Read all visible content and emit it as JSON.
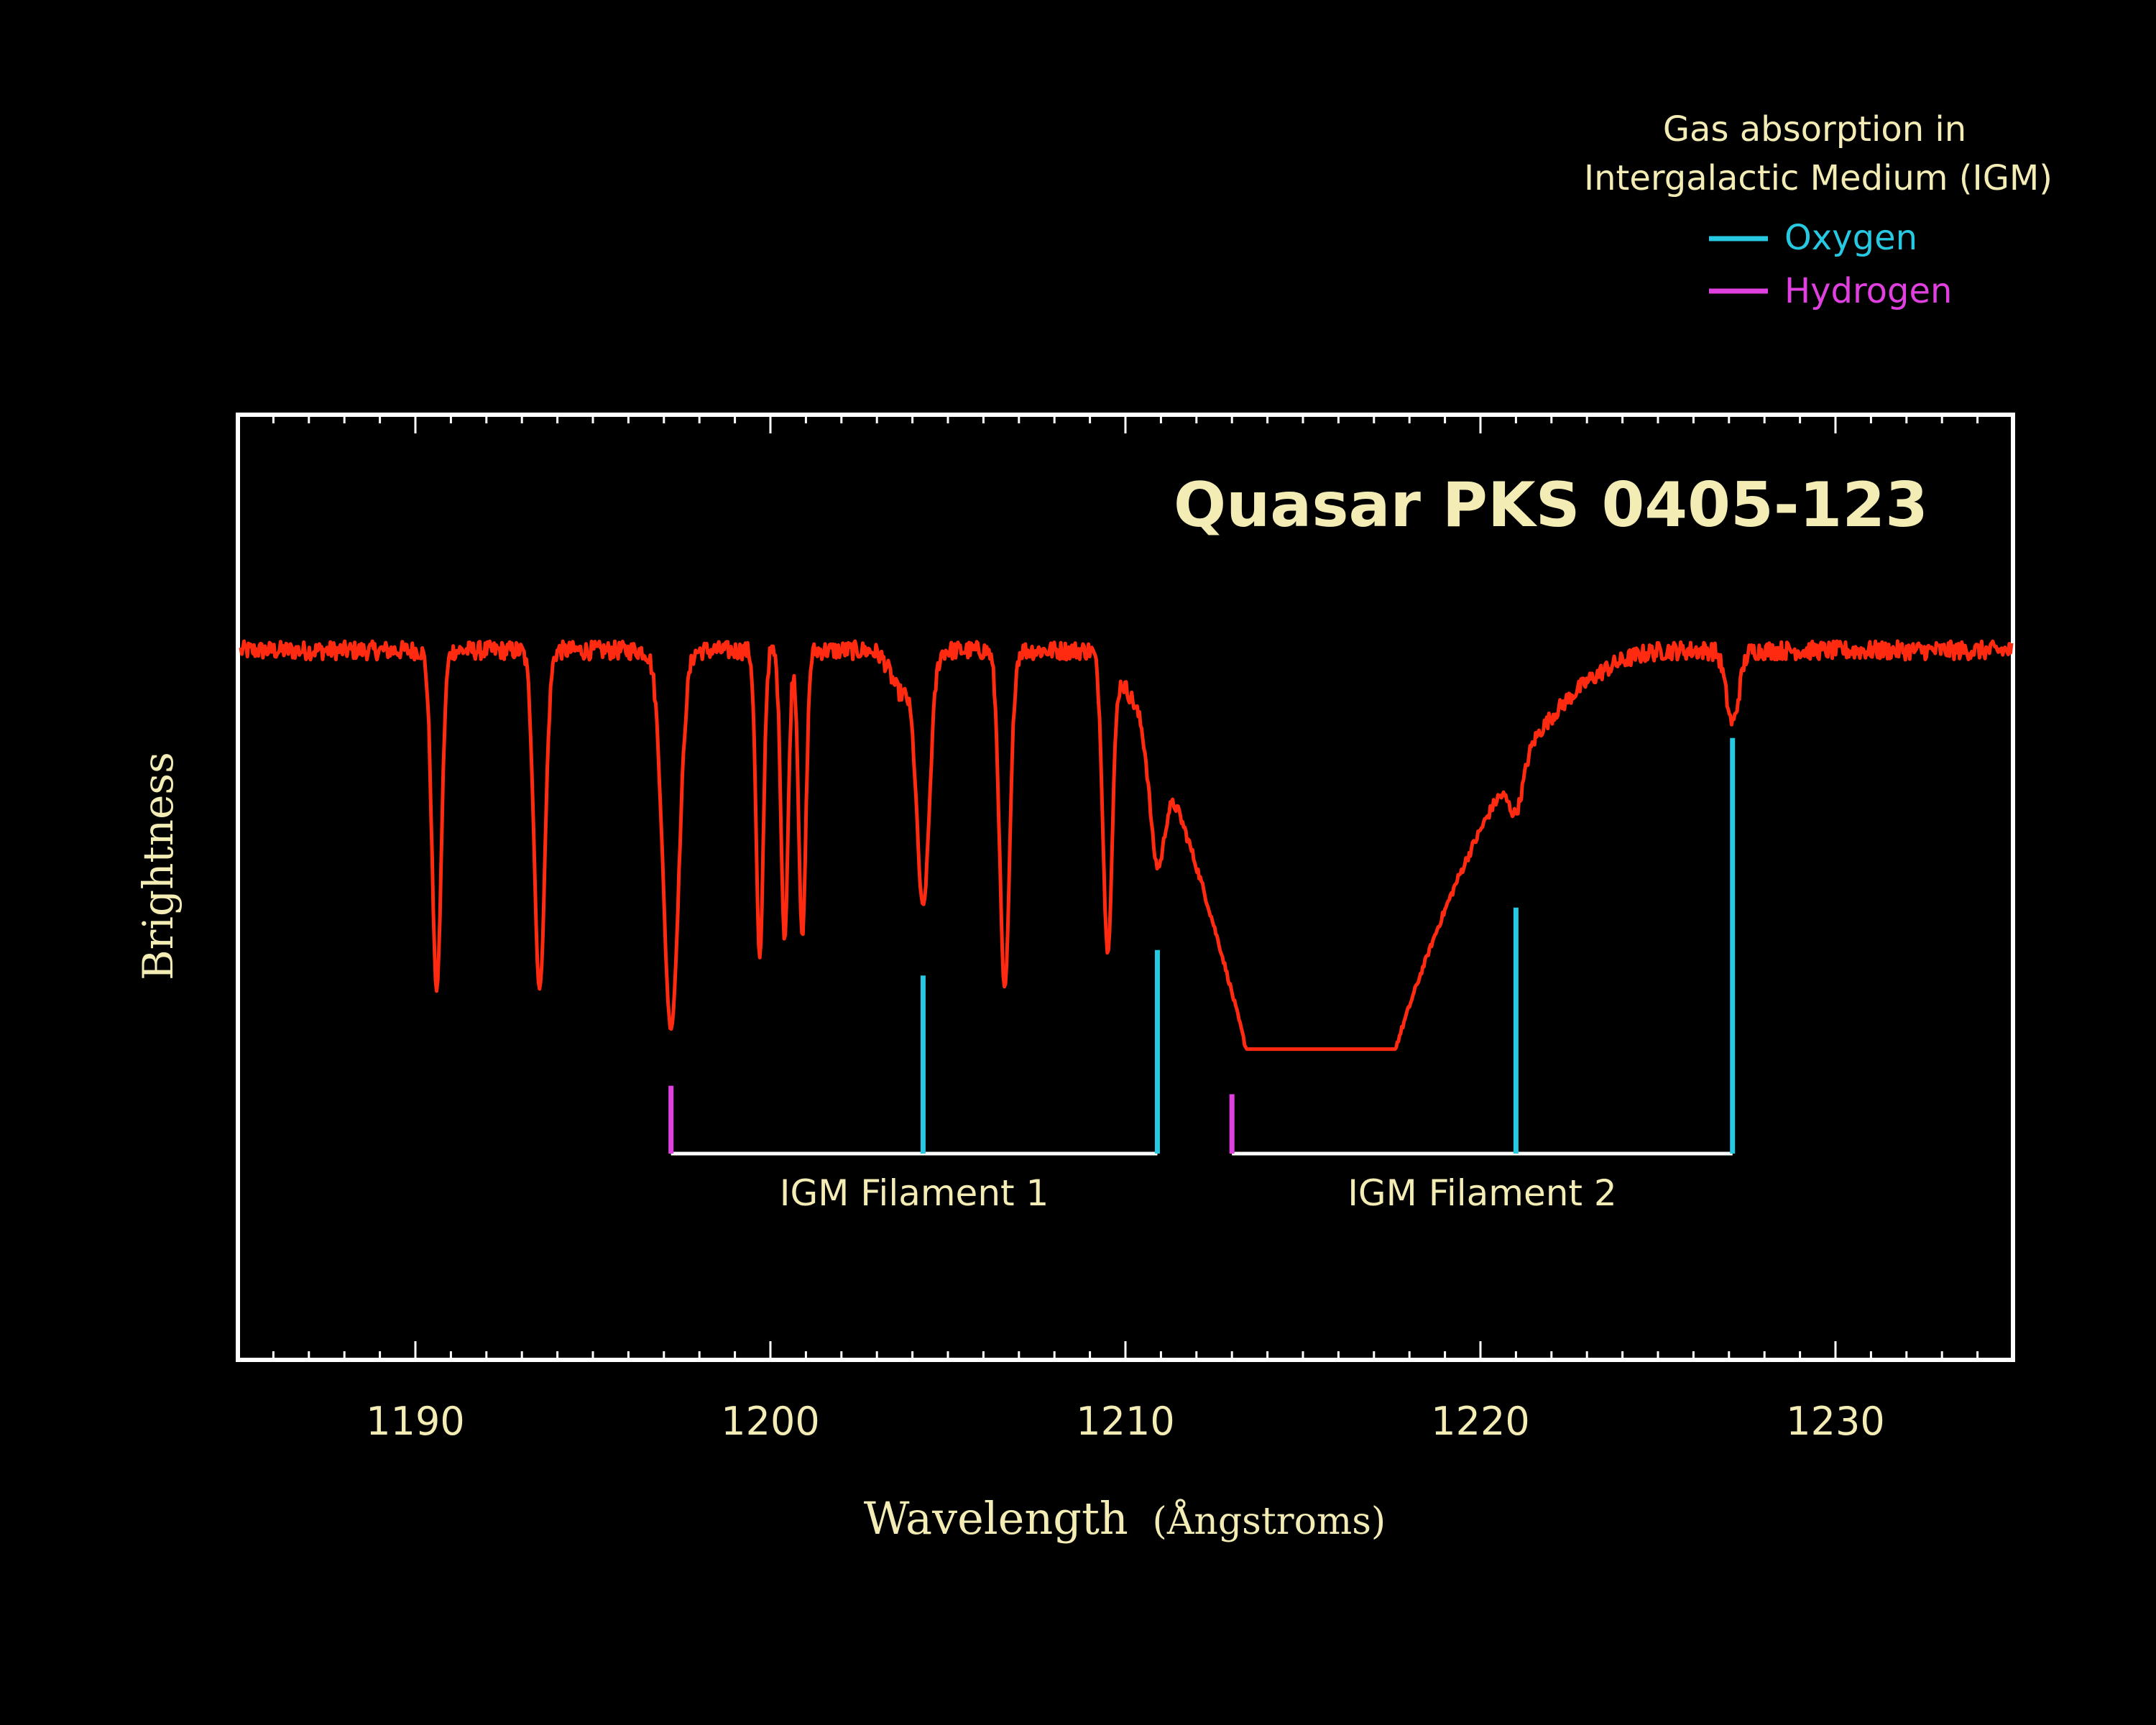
{
  "chart_data": {
    "type": "line",
    "title": "Quasar PKS 0405-123",
    "xlabel": "Wavelength (Ångstroms)",
    "xlabel_main": "Wavelength",
    "xlabel_unit": "(Ångstroms)",
    "ylabel": "Brightness",
    "xlim": [
      1185,
      1235
    ],
    "ylim": [
      0,
      1.22
    ],
    "x_ticks": [
      1190,
      1200,
      1210,
      1220,
      1230
    ],
    "x_tick_labels": [
      "1190",
      "1200",
      "1210",
      "1220",
      "1230"
    ],
    "y_ticks_shown": false,
    "grid": false,
    "series_name": "Spectrum",
    "continuum": 1.0,
    "noise": 0.022,
    "absorption_lines": [
      {
        "center": 1190.6,
        "depth": 0.8,
        "width": 0.13
      },
      {
        "center": 1193.5,
        "depth": 0.8,
        "width": 0.15
      },
      {
        "center": 1197.2,
        "depth": 0.89,
        "width": 0.22
      },
      {
        "center": 1199.7,
        "depth": 0.73,
        "width": 0.1
      },
      {
        "center": 1200.4,
        "depth": 0.68,
        "width": 0.1
      },
      {
        "center": 1200.9,
        "depth": 0.68,
        "width": 0.1
      },
      {
        "center": 1203.7,
        "depth": 0.1,
        "width": 0.3
      },
      {
        "center": 1204.3,
        "depth": 0.6,
        "width": 0.18
      },
      {
        "center": 1206.6,
        "depth": 0.8,
        "width": 0.14
      },
      {
        "center": 1209.5,
        "depth": 0.7,
        "width": 0.13
      },
      {
        "center": 1210.9,
        "depth": 0.35,
        "width": 0.2
      },
      {
        "center": 1221.0,
        "depth": 0.15,
        "width": 0.2
      },
      {
        "center": 1227.1,
        "depth": 0.17,
        "width": 0.18
      }
    ],
    "broad_feature": {
      "lo": 1213.4,
      "hi": 1217.6,
      "floor": 0.06
    },
    "filaments": [
      {
        "label": "IGM Filament 1",
        "start": 1197.2,
        "end": 1210.9,
        "lines": [
          {
            "element": "Hydrogen",
            "x": 1197.2,
            "height": 0.08
          },
          {
            "element": "Oxygen",
            "x": 1204.3,
            "height": 0.21
          },
          {
            "element": "Oxygen",
            "x": 1210.9,
            "height": 0.24
          }
        ]
      },
      {
        "label": "IGM Filament 2",
        "start": 1213.0,
        "end": 1227.1,
        "lines": [
          {
            "element": "Hydrogen",
            "x": 1213.0,
            "height": 0.07
          },
          {
            "element": "Oxygen",
            "x": 1221.0,
            "height": 0.29
          },
          {
            "element": "Oxygen",
            "x": 1227.1,
            "height": 0.49
          }
        ]
      }
    ]
  },
  "legend": {
    "title_line1": "Gas absorption in",
    "title_line2": "Intergalactic Medium (IGM)",
    "oxygen_label": "Oxygen",
    "hydrogen_label": "Hydrogen"
  },
  "colors": {
    "background": "#000000",
    "spectrum": "#ff2a10",
    "oxygen": "#27c8e2",
    "hydrogen": "#e040e0",
    "frame": "#ffffff",
    "text": "#f3ecb4",
    "bracket": "#ffffff"
  }
}
